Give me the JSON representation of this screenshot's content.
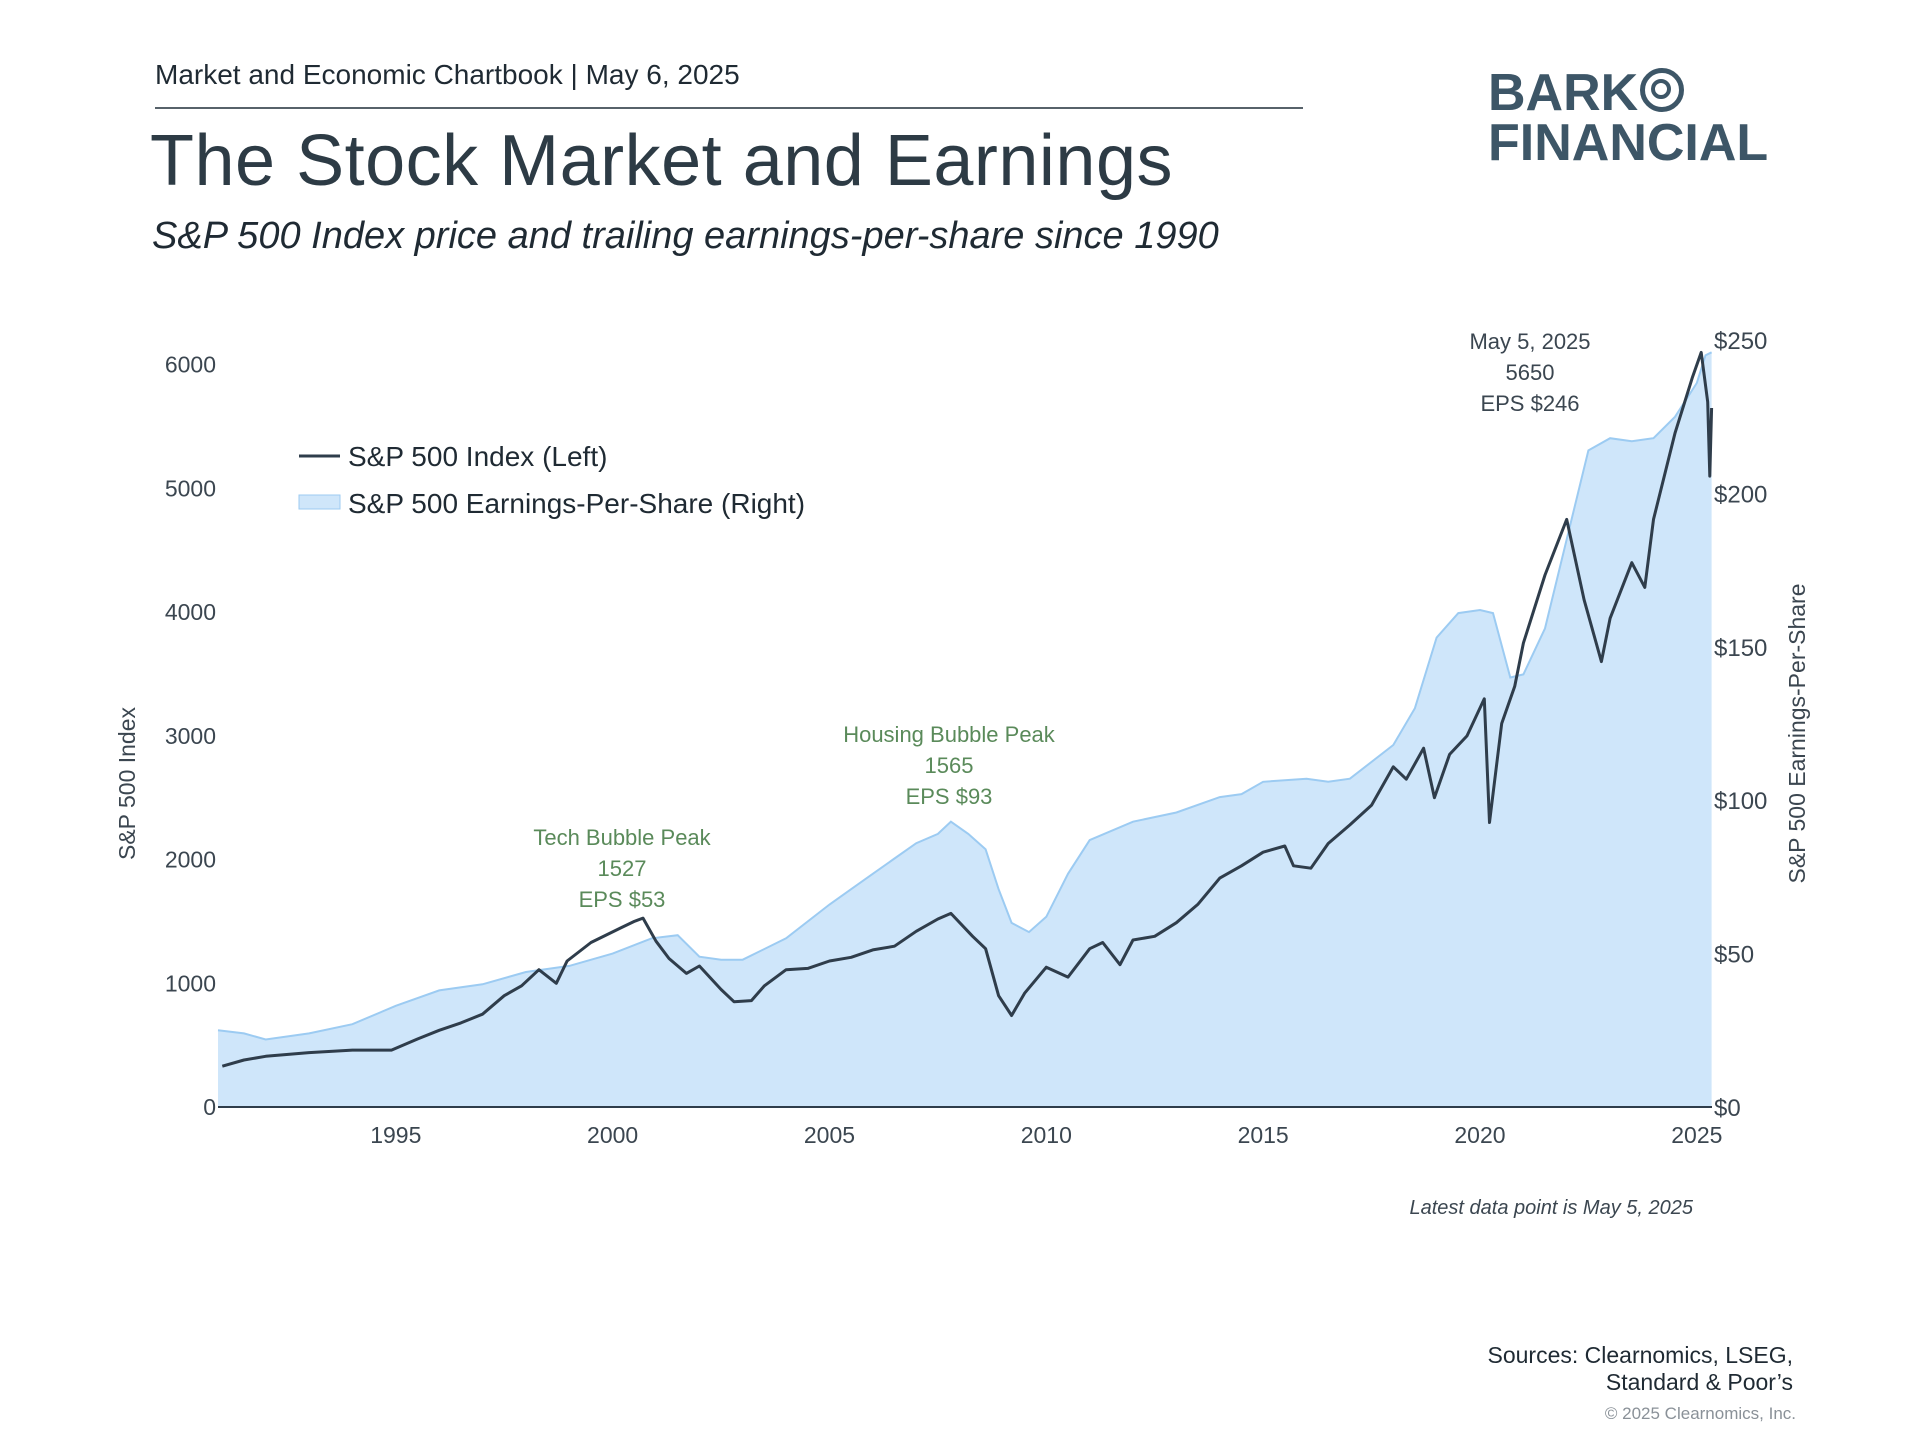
{
  "header": {
    "kicker": "Market and Economic Chartbook | May 6, 2025",
    "title": "The Stock Market and Earnings",
    "subtitle": "S&P 500 Index price and trailing earnings-per-share since 1990"
  },
  "logo": {
    "line1": "BARK",
    "line2": "FINANCIAL"
  },
  "footer": {
    "note": "Latest data point is May 5, 2025",
    "sources_line1": "Sources: Clearnomics, LSEG,",
    "sources_line2": "Standard & Poor’s",
    "copyright": "© 2025 Clearnomics, Inc."
  },
  "colors": {
    "index_line": "#2f3d4b",
    "eps_fill": "#cfe6fa",
    "eps_edge": "#9ccbf2",
    "annotation": "#5a8a5a",
    "axis_text": "#3b4650"
  },
  "chart_data": {
    "type": "line",
    "title": "",
    "xlabel": "",
    "ylabel": "S&P 500 Index",
    "ylabel_right": "S&P 500 Earnings-Per-Share",
    "xlim": [
      1990.9,
      2025.35
    ],
    "ylim": [
      0,
      6200
    ],
    "ylim_right": [
      0,
      250
    ],
    "x_ticks": [
      1995,
      2000,
      2005,
      2010,
      2015,
      2020,
      2025
    ],
    "y_ticks": [
      0,
      1000,
      2000,
      3000,
      4000,
      5000,
      6000
    ],
    "y_ticks_right": [
      0,
      50,
      100,
      150,
      200,
      250
    ],
    "y_tick_labels_right": [
      "$0",
      "$50",
      "$100",
      "$150",
      "$200",
      "$250"
    ],
    "legend_position": "top-left",
    "series": [
      {
        "name": "S&P 500 Index (Left)",
        "axis": "left",
        "style": "line",
        "x": [
          1991.0,
          1991.5,
          1992.0,
          1993.0,
          1994.0,
          1994.9,
          1995.5,
          1996.0,
          1996.5,
          1997.0,
          1997.5,
          1997.9,
          1998.3,
          1998.7,
          1998.95,
          1999.5,
          2000.2,
          2000.5,
          2000.7,
          2001.0,
          2001.3,
          2001.7,
          2002.0,
          2002.5,
          2002.8,
          2003.2,
          2003.5,
          2004.0,
          2004.5,
          2005.0,
          2005.5,
          2006.0,
          2006.5,
          2007.0,
          2007.5,
          2007.8,
          2008.3,
          2008.6,
          2008.9,
          2009.2,
          2009.5,
          2010.0,
          2010.5,
          2011.0,
          2011.3,
          2011.7,
          2012.0,
          2012.5,
          2013.0,
          2013.5,
          2014.0,
          2014.5,
          2015.0,
          2015.5,
          2015.7,
          2016.1,
          2016.5,
          2017.0,
          2017.5,
          2018.0,
          2018.3,
          2018.7,
          2018.95,
          2019.3,
          2019.7,
          2020.1,
          2020.22,
          2020.5,
          2020.8,
          2021.0,
          2021.5,
          2022.0,
          2022.4,
          2022.8,
          2023.0,
          2023.5,
          2023.8,
          2024.0,
          2024.5,
          2024.9,
          2025.1,
          2025.25,
          2025.3,
          2025.34
        ],
        "y": [
          330,
          380,
          410,
          440,
          460,
          460,
          550,
          620,
          680,
          750,
          900,
          980,
          1110,
          1000,
          1180,
          1330,
          1450,
          1500,
          1527,
          1340,
          1200,
          1080,
          1140,
          950,
          850,
          860,
          980,
          1110,
          1120,
          1180,
          1210,
          1270,
          1300,
          1420,
          1520,
          1565,
          1380,
          1280,
          900,
          740,
          920,
          1130,
          1050,
          1280,
          1330,
          1150,
          1350,
          1380,
          1490,
          1640,
          1850,
          1950,
          2060,
          2110,
          1950,
          1930,
          2130,
          2280,
          2440,
          2750,
          2650,
          2900,
          2500,
          2850,
          3000,
          3300,
          2300,
          3100,
          3400,
          3750,
          4300,
          4750,
          4100,
          3600,
          3950,
          4400,
          4200,
          4750,
          5450,
          5900,
          6100,
          5700,
          5100,
          5650
        ]
      },
      {
        "name": "S&P 500 Earnings-Per-Share (Right)",
        "axis": "right",
        "style": "area",
        "x": [
          1990.9,
          1991.5,
          1992.0,
          1993.0,
          1994.0,
          1995.0,
          1996.0,
          1997.0,
          1998.0,
          1999.0,
          2000.0,
          2000.9,
          2001.5,
          2002.0,
          2002.5,
          2003.0,
          2004.0,
          2005.0,
          2006.0,
          2006.5,
          2007.0,
          2007.5,
          2007.8,
          2008.2,
          2008.6,
          2008.9,
          2009.2,
          2009.6,
          2010.0,
          2010.5,
          2011.0,
          2012.0,
          2013.0,
          2014.0,
          2014.5,
          2015.0,
          2016.0,
          2016.5,
          2017.0,
          2018.0,
          2018.5,
          2019.0,
          2019.5,
          2020.0,
          2020.3,
          2020.7,
          2021.0,
          2021.5,
          2022.0,
          2022.5,
          2023.0,
          2023.5,
          2024.0,
          2024.5,
          2025.0,
          2025.2,
          2025.34
        ],
        "y": [
          25,
          24,
          22,
          24,
          27,
          33,
          38,
          40,
          44,
          46,
          50,
          55,
          56,
          49,
          48,
          48,
          55,
          66,
          76,
          81,
          86,
          89,
          93,
          89,
          84,
          71,
          60,
          57,
          62,
          76,
          87,
          93,
          96,
          101,
          102,
          106,
          107,
          106,
          107,
          118,
          130,
          153,
          161,
          162,
          161,
          140,
          141,
          156,
          185,
          214,
          218,
          217,
          218,
          225,
          236,
          245,
          246
        ]
      }
    ],
    "annotations": [
      {
        "x": 2000.7,
        "lines": [
          "Tech Bubble Peak",
          "1527",
          "EPS $53"
        ]
      },
      {
        "x": 2007.8,
        "lines": [
          "Housing Bubble Peak",
          "1565",
          "EPS $93"
        ]
      },
      {
        "x": 2025.34,
        "lines": [
          "May 5, 2025",
          "5650",
          "EPS $246"
        ]
      }
    ]
  }
}
